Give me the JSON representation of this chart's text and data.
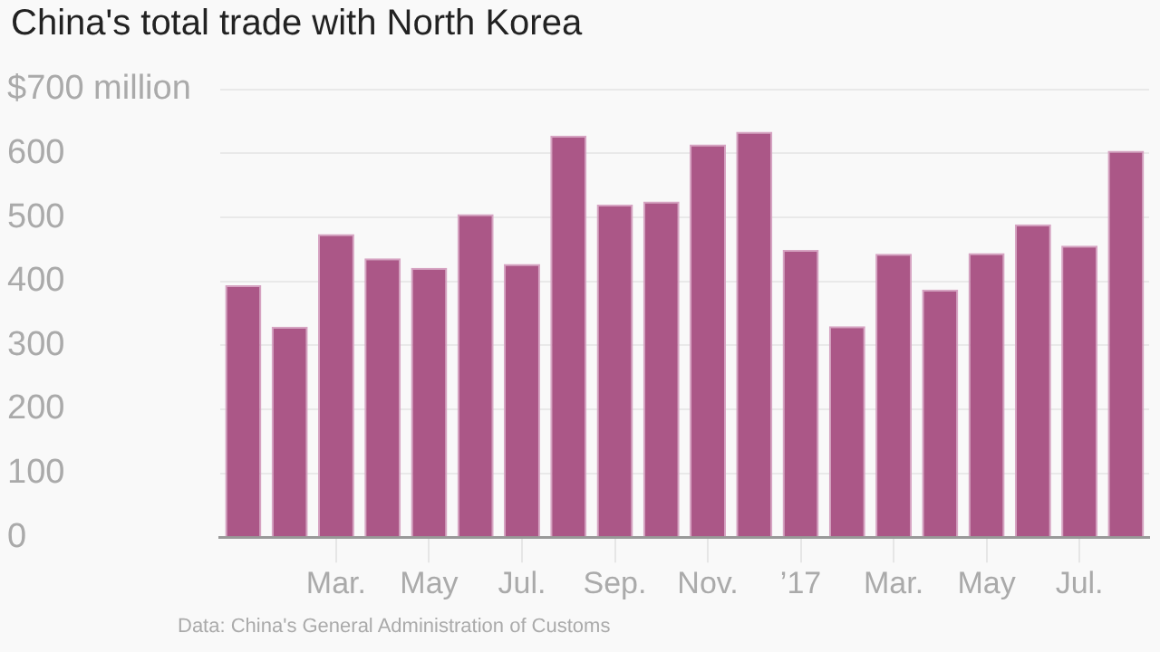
{
  "chart_data": {
    "type": "bar",
    "title": "China's total trade with North Korea",
    "categories": [
      null,
      null,
      "Mar.",
      null,
      "May",
      null,
      "Jul.",
      null,
      "Sep.",
      null,
      "Nov.",
      null,
      "’17",
      null,
      "Mar.",
      null,
      "May",
      null,
      "Jul.",
      null
    ],
    "values": [
      394,
      329,
      474,
      436,
      421,
      505,
      427,
      628,
      520,
      525,
      614,
      634,
      449,
      330,
      443,
      387,
      444,
      489,
      456,
      604
    ],
    "color": "#ab5787",
    "ylim": [
      0,
      700
    ],
    "yticks": [
      0,
      100,
      200,
      300,
      400,
      500,
      600,
      {
        "value": 700,
        "label": "$700 million"
      }
    ],
    "grid": "y",
    "annotations": [
      "Data: China's General Administration of Customs"
    ]
  }
}
